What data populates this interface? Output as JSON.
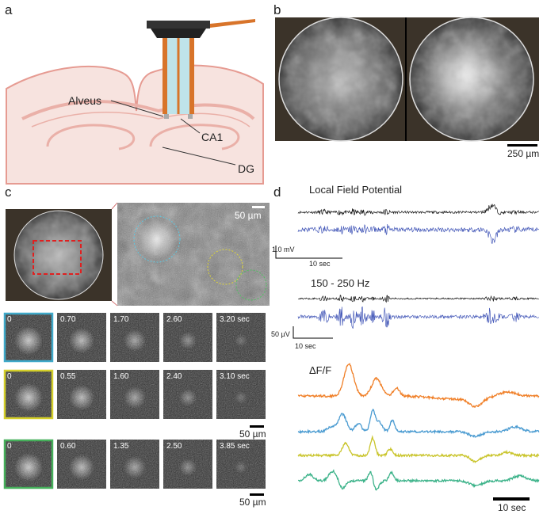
{
  "panel_labels": [
    "a",
    "b",
    "c",
    "d"
  ],
  "panel_a": {
    "labels": [
      "Alveus",
      "CA1",
      "DG"
    ]
  },
  "panel_b": {
    "scale_bar": "250 µm"
  },
  "panel_c": {
    "zoom_scale_bar": "50 µm",
    "rows": [
      {
        "color": "#3fa9c9",
        "times": [
          "0",
          "0.70",
          "1.70",
          "2.60",
          "3.20 sec"
        ]
      },
      {
        "color": "#d4cf2a",
        "times": [
          "0",
          "0.55",
          "1.60",
          "2.40",
          "3.10 sec"
        ],
        "scale_bar": "50 µm"
      },
      {
        "color": "#45b05a",
        "times": [
          "0",
          "0.60",
          "1.35",
          "2.50",
          "3.85 sec"
        ],
        "scale_bar": "50 µm"
      }
    ]
  },
  "panel_d": {
    "lfp": {
      "title": "Local Field Potential",
      "amplitude_scale": "1.0 mV",
      "time_scale": "10 sec"
    },
    "ripple": {
      "title": "150 - 250 Hz",
      "amplitude_scale": "50 µV",
      "time_scale": "10 sec"
    },
    "calcium": {
      "title": "ΔF/F",
      "time_scale": "10 sec",
      "trace_colors": [
        "#f07f27",
        "#4a9bd1",
        "#c9c42a",
        "#3db38a"
      ]
    }
  }
}
